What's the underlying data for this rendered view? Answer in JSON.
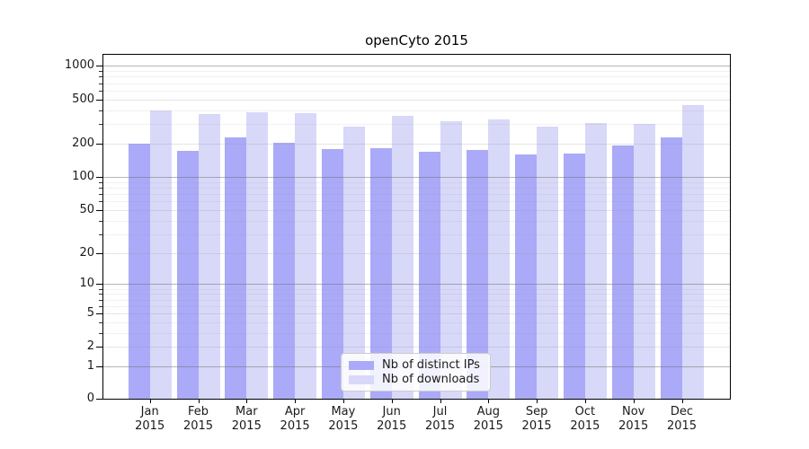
{
  "title": "openCyto 2015",
  "colors": {
    "ips_bar": "#aaaaf8",
    "downloads_bar": "#d8d8f8",
    "grid_decade": "rgba(110,110,110,0.50)",
    "grid_major": "rgba(150,150,150,0.25)",
    "grid_minor": "rgba(150,150,150,0.13)",
    "axis": "#000000"
  },
  "legend": {
    "items": [
      {
        "label": "Nb of distinct IPs",
        "color_key": "ips_bar"
      },
      {
        "label": "Nb of downloads",
        "color_key": "downloads_bar"
      }
    ]
  },
  "x_axis": {
    "months": [
      "Jan",
      "Feb",
      "Mar",
      "Apr",
      "May",
      "Jun",
      "Jul",
      "Aug",
      "Sep",
      "Oct",
      "Nov",
      "Dec"
    ],
    "year_label": "2015"
  },
  "y_axis": {
    "tick_labels": [
      "0",
      "1",
      "2",
      "5",
      "10",
      "20",
      "50",
      "100",
      "200",
      "500",
      "1000"
    ]
  },
  "chart_data": {
    "type": "bar",
    "title": "openCyto 2015",
    "categories": [
      "Jan 2015",
      "Feb 2015",
      "Mar 2015",
      "Apr 2015",
      "May 2015",
      "Jun 2015",
      "Jul 2015",
      "Aug 2015",
      "Sep 2015",
      "Oct 2015",
      "Nov 2015",
      "Dec 2015"
    ],
    "series": [
      {
        "name": "Nb of distinct IPs",
        "color_key": "ips_bar",
        "values": [
          198,
          173,
          229,
          204,
          179,
          182,
          169,
          175,
          159,
          163,
          192,
          229
        ]
      },
      {
        "name": "Nb of downloads",
        "color_key": "downloads_bar",
        "values": [
          398,
          370,
          384,
          380,
          285,
          356,
          318,
          330,
          285,
          307,
          301,
          445
        ]
      }
    ],
    "xlabel": "",
    "ylabel": "",
    "yscale": "log1p",
    "ylim": [
      0,
      1250
    ],
    "yticks": [
      0,
      1,
      2,
      5,
      10,
      20,
      50,
      100,
      200,
      500,
      1000
    ],
    "yticks_decade": [
      1,
      10,
      100,
      1000
    ],
    "yticks_minor": [
      3,
      4,
      6,
      7,
      8,
      9,
      30,
      40,
      60,
      70,
      80,
      90,
      300,
      400,
      600,
      700,
      800,
      900
    ],
    "grid": "on",
    "legend_position": "lower center"
  }
}
